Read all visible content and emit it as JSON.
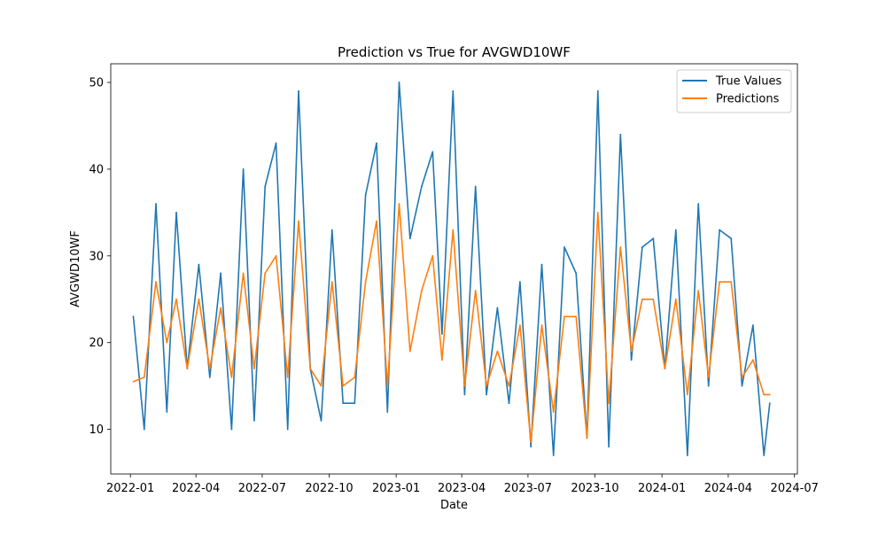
{
  "chart_data": {
    "type": "line",
    "title": "Prediction vs True for AVGWD10WF",
    "xlabel": "Date",
    "ylabel": "AVGWD10WF",
    "x_ticks": [
      "2022-01",
      "2022-04",
      "2022-07",
      "2022-10",
      "2023-01",
      "2023-04",
      "2023-07",
      "2023-10",
      "2024-01",
      "2024-04",
      "2024-07"
    ],
    "y_ticks": [
      10,
      20,
      30,
      40,
      50
    ],
    "xlim": [
      "2021-12-05",
      "2024-07-05"
    ],
    "ylim": [
      4.85,
      52.15
    ],
    "grid": false,
    "legend": "top-right",
    "x": [
      "2022-01-05",
      "2022-01-20",
      "2022-02-05",
      "2022-02-20",
      "2022-03-05",
      "2022-03-20",
      "2022-04-05",
      "2022-04-20",
      "2022-05-05",
      "2022-05-20",
      "2022-06-05",
      "2022-06-20",
      "2022-07-05",
      "2022-07-20",
      "2022-08-05",
      "2022-08-20",
      "2022-09-05",
      "2022-09-20",
      "2022-10-05",
      "2022-10-20",
      "2022-11-05",
      "2022-11-20",
      "2022-12-05",
      "2022-12-20",
      "2023-01-05",
      "2023-01-20",
      "2023-02-05",
      "2023-02-20",
      "2023-03-05",
      "2023-03-20",
      "2023-04-05",
      "2023-04-20",
      "2023-05-05",
      "2023-05-20",
      "2023-06-05",
      "2023-06-20",
      "2023-07-05",
      "2023-07-20",
      "2023-08-05",
      "2023-08-20",
      "2023-09-05",
      "2023-09-20",
      "2023-10-05",
      "2023-10-20",
      "2023-11-05",
      "2023-11-20",
      "2023-12-05",
      "2023-12-20",
      "2024-01-05",
      "2024-01-20",
      "2024-02-05",
      "2024-02-20",
      "2024-03-05",
      "2024-03-20",
      "2024-04-05",
      "2024-04-20",
      "2024-05-05",
      "2024-05-20",
      "2024-05-28"
    ],
    "series": [
      {
        "name": "True Values",
        "color": "#1f77b4",
        "values": [
          23,
          10,
          36,
          12,
          35,
          17,
          29,
          16,
          28,
          10,
          40,
          11,
          38,
          43,
          10,
          49,
          17,
          11,
          33,
          13,
          13,
          37,
          43,
          12,
          50,
          32,
          38,
          42,
          21,
          49,
          14,
          38,
          14,
          24,
          13,
          27,
          8,
          29,
          7,
          31,
          28,
          9,
          49,
          8,
          44,
          18,
          31,
          32,
          17,
          33,
          7,
          36,
          15,
          33,
          32,
          15,
          22,
          7,
          13
        ]
      },
      {
        "name": "Predictions",
        "color": "#ff7f0e",
        "values": [
          15.5,
          16,
          27,
          20,
          25,
          17,
          25,
          17,
          24,
          16,
          28,
          17,
          28,
          30,
          16,
          34,
          17,
          15,
          27,
          15,
          16,
          27,
          34,
          15,
          36,
          19,
          26,
          30,
          18,
          33,
          15,
          26,
          15,
          19,
          15,
          22,
          8.5,
          22,
          12,
          23,
          23,
          9,
          35,
          13,
          31,
          19,
          25,
          25,
          17,
          25,
          14,
          26,
          16,
          27,
          27,
          16,
          18,
          14,
          14
        ]
      }
    ]
  }
}
